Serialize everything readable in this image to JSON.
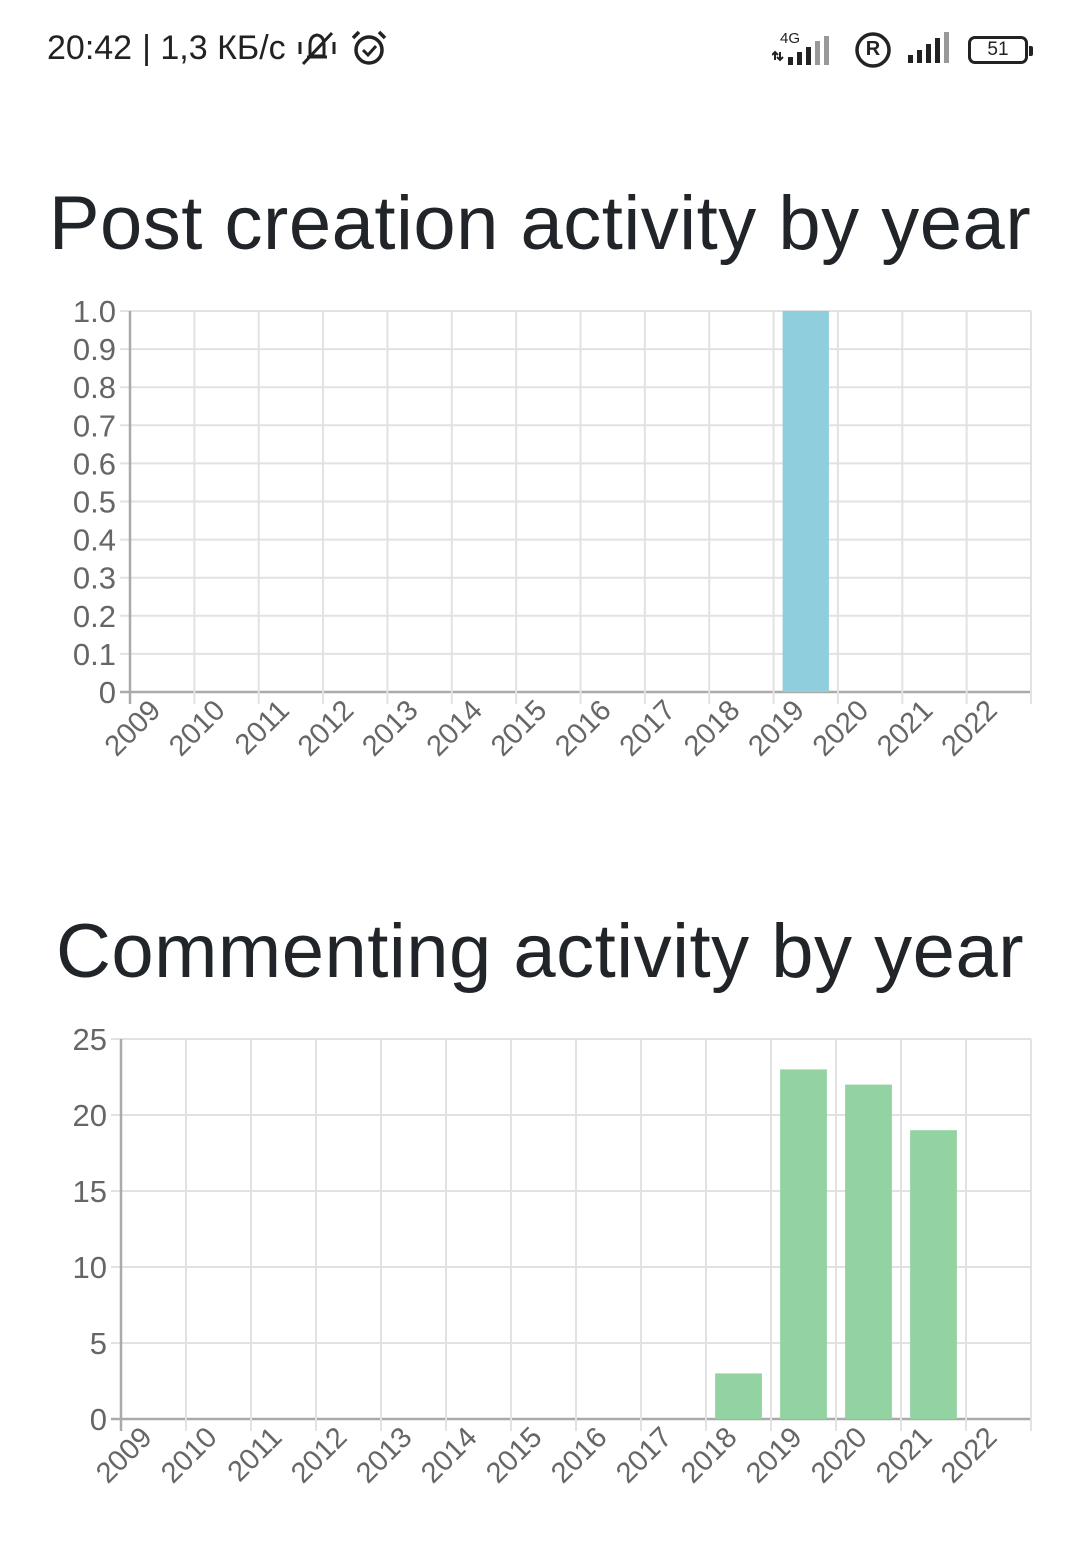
{
  "status_bar": {
    "time": "20:42",
    "speed": "| 1,3 КБ/с",
    "network_type": "4G",
    "roaming": "R",
    "battery": "51",
    "icons": [
      "vibrate-off-icon",
      "alarm-icon",
      "signal-4g-icon",
      "roaming-icon",
      "signal-icon",
      "battery-icon"
    ]
  },
  "chart_data": [
    {
      "type": "bar",
      "title": "Post creation activity by year",
      "categories": [
        "2009",
        "2010",
        "2011",
        "2012",
        "2013",
        "2014",
        "2015",
        "2016",
        "2017",
        "2018",
        "2019",
        "2020",
        "2021",
        "2022"
      ],
      "values": [
        0,
        0,
        0,
        0,
        0,
        0,
        0,
        0,
        0,
        0,
        1,
        0,
        0,
        0
      ],
      "yticks": [
        "1.0",
        "0.9",
        "0.8",
        "0.7",
        "0.6",
        "0.5",
        "0.4",
        "0.3",
        "0.2",
        "0.1",
        "0"
      ],
      "ylim": [
        0,
        1
      ],
      "color": "#8fcfdd",
      "grid": true
    },
    {
      "type": "bar",
      "title": "Commenting activity by year",
      "categories": [
        "2009",
        "2010",
        "2011",
        "2012",
        "2013",
        "2014",
        "2015",
        "2016",
        "2017",
        "2018",
        "2019",
        "2020",
        "2021",
        "2022"
      ],
      "values": [
        0,
        0,
        0,
        0,
        0,
        0,
        0,
        0,
        0,
        3,
        23,
        22,
        19,
        0
      ],
      "yticks": [
        "25",
        "20",
        "15",
        "10",
        "5",
        "0"
      ],
      "ylim": [
        0,
        25
      ],
      "color": "#93d3a2",
      "grid": true
    }
  ]
}
